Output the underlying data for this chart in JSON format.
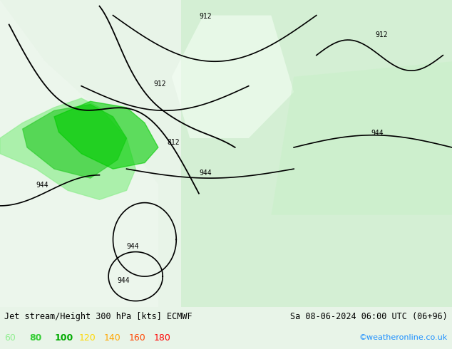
{
  "title_left": "Jet stream/Height 300 hPa [kts] ECMWF",
  "title_right": "Sa 08-06-2024 06:00 UTC (06+96)",
  "watermark": "©weatheronline.co.uk",
  "legend_values": [
    60,
    80,
    100,
    120,
    140,
    160,
    180
  ],
  "legend_colors": [
    "#90ee90",
    "#32cd32",
    "#00aa00",
    "#ffd700",
    "#ffa500",
    "#ff4500",
    "#ff0000"
  ],
  "bg_color": "#e8f4e8",
  "map_bg": "#d0e8d0",
  "label_color": "#000000",
  "bottom_bar_color": "#e0e0e0",
  "figsize": [
    6.34,
    4.9
  ],
  "dpi": 100
}
